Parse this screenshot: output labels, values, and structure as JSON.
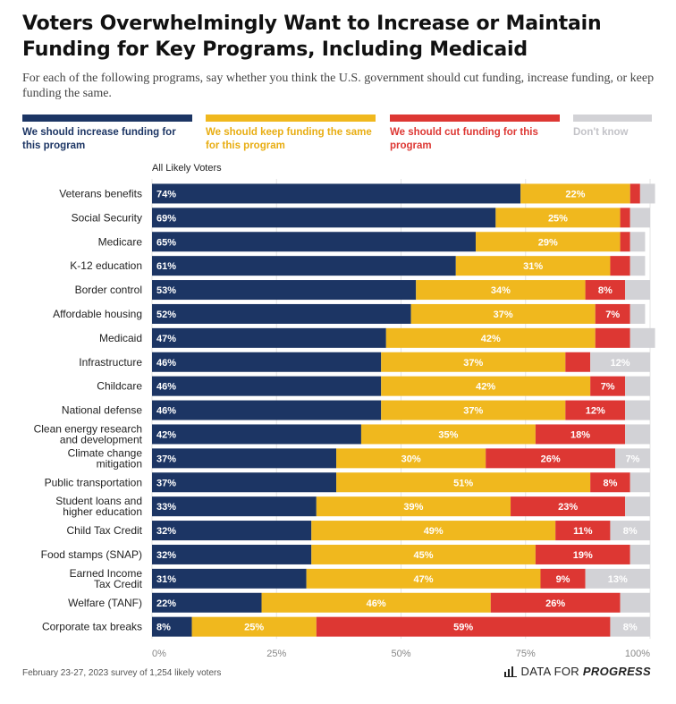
{
  "header": {
    "title": "Voters Overwhelmingly Want to Increase or Maintain Funding for Key Programs, Including Medicaid",
    "subtitle": "For each of the following programs, say whether you think the U.S. government should cut funding, increase funding, or keep funding the same."
  },
  "legend": [
    {
      "label": "We should increase funding for this program",
      "color": "#1c3564"
    },
    {
      "label": "We should keep funding the same for this program",
      "color": "#f0b81e"
    },
    {
      "label": "We should cut funding for this program",
      "color": "#dd3733"
    },
    {
      "label": "Don't know",
      "color": "#d2d2d6"
    }
  ],
  "group_label": "All Likely Voters",
  "footer": {
    "note": "February 23-27, 2023 survey of 1,254 likely voters",
    "brand_plain": "DATA FOR ",
    "brand_bold": "PROGRESS"
  },
  "chart_data": {
    "type": "bar",
    "orientation": "horizontal",
    "stacked": true,
    "categories": [
      "Veterans benefits",
      "Social Security",
      "Medicare",
      "K-12 education",
      "Border control",
      "Affordable housing",
      "Medicaid",
      "Infrastructure",
      "Childcare",
      "National defense",
      "Clean energy research and development",
      "Climate change mitigation",
      "Public transportation",
      "Student loans and higher education",
      "Child Tax Credit",
      "Food stamps (SNAP)",
      "Earned Income Tax Credit",
      "Welfare (TANF)",
      "Corporate tax breaks"
    ],
    "series": [
      {
        "name": "We should increase funding for this program",
        "color": "#1c3564",
        "values": [
          74,
          69,
          65,
          61,
          53,
          52,
          47,
          46,
          46,
          46,
          42,
          37,
          37,
          33,
          32,
          32,
          31,
          22,
          8
        ]
      },
      {
        "name": "We should keep funding the same for this program",
        "color": "#f0b81e",
        "values": [
          22,
          25,
          29,
          31,
          34,
          37,
          42,
          37,
          42,
          37,
          35,
          30,
          51,
          39,
          49,
          45,
          47,
          46,
          25
        ]
      },
      {
        "name": "We should cut funding for this program",
        "color": "#dd3733",
        "values": [
          2,
          2,
          2,
          4,
          8,
          7,
          7,
          5,
          7,
          12,
          18,
          26,
          8,
          23,
          11,
          19,
          9,
          26,
          59
        ]
      },
      {
        "name": "Don't know",
        "color": "#d2d2d6",
        "values": [
          3,
          4,
          3,
          3,
          5,
          3,
          5,
          12,
          5,
          5,
          5,
          7,
          4,
          5,
          8,
          4,
          13,
          6,
          8
        ]
      }
    ],
    "data_labels": {
      "We should increase funding for this program": [
        "74%",
        "69%",
        "65%",
        "61%",
        "53%",
        "52%",
        "47%",
        "46%",
        "46%",
        "46%",
        "42%",
        "37%",
        "37%",
        "33%",
        "32%",
        "32%",
        "31%",
        "22%",
        "8%"
      ],
      "We should keep funding the same for this program": [
        "22%",
        "25%",
        "29%",
        "31%",
        "34%",
        "37%",
        "42%",
        "37%",
        "42%",
        "37%",
        "35%",
        "30%",
        "51%",
        "39%",
        "49%",
        "45%",
        "47%",
        "46%",
        "25%"
      ],
      "We should cut funding for this program": [
        "",
        "",
        "",
        "",
        "8%",
        "7%",
        "",
        "",
        "7%",
        "12%",
        "18%",
        "26%",
        "8%",
        "23%",
        "11%",
        "19%",
        "9%",
        "26%",
        "59%"
      ],
      "Don't know": [
        "",
        "",
        "",
        "",
        "",
        "",
        "",
        "12%",
        "",
        "",
        "",
        "7%",
        "",
        "",
        "8%",
        "",
        "13%",
        "",
        "8%"
      ]
    },
    "x_ticks": [
      "0%",
      "25%",
      "50%",
      "75%",
      "100%"
    ],
    "xlim": [
      0,
      100
    ],
    "grid": true,
    "legend_position": "top"
  }
}
